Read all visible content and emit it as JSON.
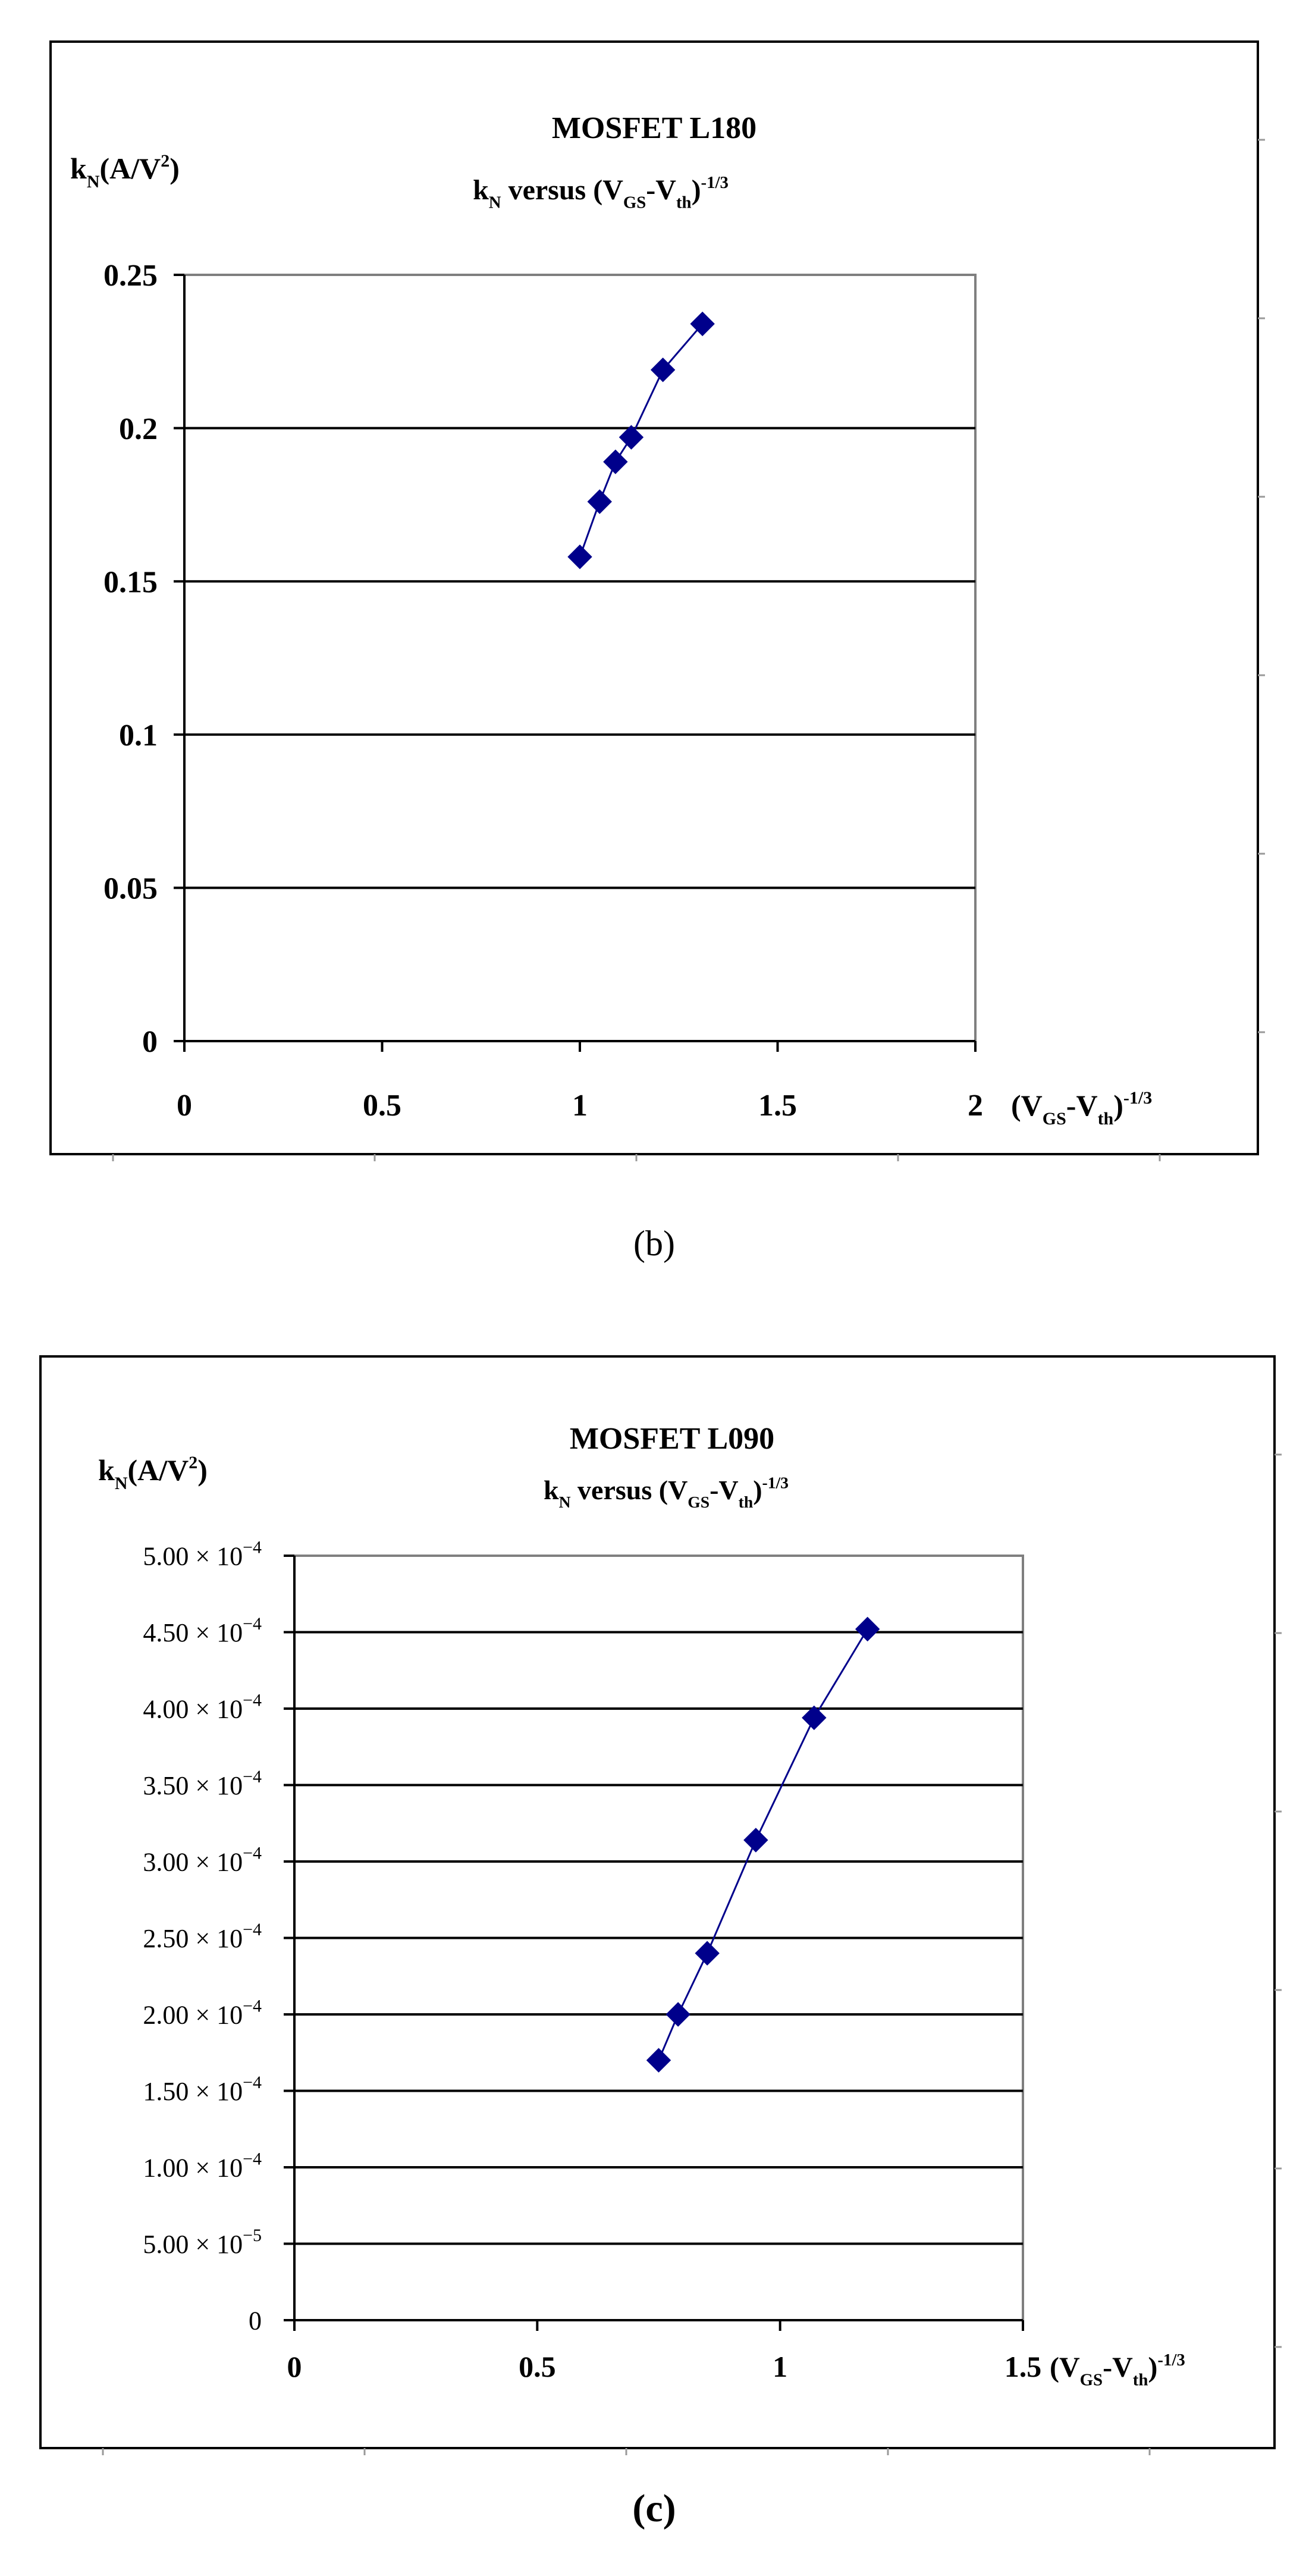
{
  "chart_data": [
    {
      "type": "line",
      "panel_label": "(b)",
      "title": "MOSFET L180",
      "subtitle": {
        "main": "k",
        "sub1": "N",
        "mid": " versus (V",
        "sub2": "GS",
        "dash": "-V",
        "sub3": "th",
        "close": ")",
        "sup": "-1/3"
      },
      "ylabel": {
        "main": "k",
        "sub": "N",
        "mid": "(A/V",
        "sup": "2",
        "close": ")"
      },
      "xlabel": {
        "open": "(V",
        "sub1": "GS",
        "dash": "-V",
        "sub2": "th",
        "close": ")",
        "sup": "-1/3"
      },
      "xlim": [
        0,
        2
      ],
      "ylim": [
        0,
        0.25
      ],
      "xticks": [
        {
          "value": 0,
          "label": "0"
        },
        {
          "value": 0.5,
          "label": "0.5"
        },
        {
          "value": 1,
          "label": "1"
        },
        {
          "value": 1.5,
          "label": "1.5"
        },
        {
          "value": 2,
          "label": "2"
        }
      ],
      "yticks": [
        {
          "value": 0,
          "label": "0"
        },
        {
          "value": 0.05,
          "label": "0.05"
        },
        {
          "value": 0.1,
          "label": "0.1"
        },
        {
          "value": 0.15,
          "label": "0.15"
        },
        {
          "value": 0.2,
          "label": "0.2"
        },
        {
          "value": 0.25,
          "label": "0.25"
        }
      ],
      "grid": "horizontal",
      "series": [
        {
          "color": "#00008b",
          "marker": "diamond",
          "x": [
            1.0,
            1.05,
            1.09,
            1.13,
            1.21,
            1.31
          ],
          "y": [
            0.158,
            0.176,
            0.189,
            0.197,
            0.219,
            0.234
          ]
        }
      ]
    },
    {
      "type": "line",
      "panel_label": "(c)",
      "title": "MOSFET L090",
      "subtitle": {
        "main": "k",
        "sub1": "N",
        "mid": " versus (V",
        "sub2": "GS",
        "dash": "-V",
        "sub3": "th",
        "close": ")",
        "sup": "-1/3"
      },
      "ylabel": {
        "main": "k",
        "sub": "N",
        "mid": "(A/V",
        "sup": "2",
        "close": ")"
      },
      "xlabel": {
        "open": "(V",
        "sub1": "GS",
        "dash": "-V",
        "sub2": "th",
        "close": ")",
        "sup": "-1/3"
      },
      "xlim": [
        0,
        1.5
      ],
      "ylim": [
        0,
        0.0005
      ],
      "xticks": [
        {
          "value": 0,
          "label": "0"
        },
        {
          "value": 0.5,
          "label": "0.5"
        },
        {
          "value": 1,
          "label": "1"
        },
        {
          "value": 1.5,
          "label": "1.5"
        }
      ],
      "yticks": [
        {
          "value": 0,
          "label": "0",
          "exp": ""
        },
        {
          "value": 5e-05,
          "label": "5.00 × 10",
          "exp": "−5"
        },
        {
          "value": 0.0001,
          "label": "1.00 × 10",
          "exp": "−4"
        },
        {
          "value": 0.00015,
          "label": "1.50 × 10",
          "exp": "−4"
        },
        {
          "value": 0.0002,
          "label": "2.00 × 10",
          "exp": "−4"
        },
        {
          "value": 0.00025,
          "label": "2.50 × 10",
          "exp": "−4"
        },
        {
          "value": 0.0003,
          "label": "3.00 × 10",
          "exp": "−4"
        },
        {
          "value": 0.00035,
          "label": "3.50 × 10",
          "exp": "−4"
        },
        {
          "value": 0.0004,
          "label": "4.00 × 10",
          "exp": "−4"
        },
        {
          "value": 0.00045,
          "label": "4.50 × 10",
          "exp": "−4"
        },
        {
          "value": 0.0005,
          "label": "5.00 × 10",
          "exp": "−4"
        }
      ],
      "grid": "horizontal",
      "series": [
        {
          "color": "#00008b",
          "marker": "diamond",
          "x": [
            0.75,
            0.79,
            0.85,
            0.95,
            1.07,
            1.18
          ],
          "y": [
            0.00017,
            0.0002,
            0.00024,
            0.000314,
            0.000394,
            0.000452
          ]
        }
      ]
    }
  ]
}
